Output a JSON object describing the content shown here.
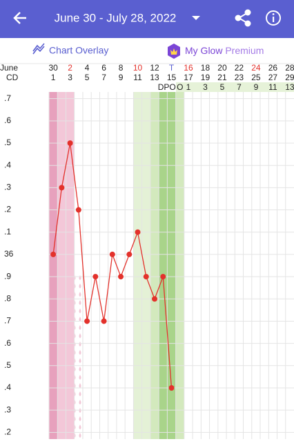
{
  "header": {
    "title": "June 30 - July 28, 2022"
  },
  "toolbar": {
    "overlay": "Chart Overlay",
    "premium_a": "My Glow",
    "premium_b": "Premium"
  },
  "chart_data": {
    "type": "line",
    "month": "June",
    "cd_label": "CD",
    "dates": [
      "30",
      "2",
      "4",
      "6",
      "8",
      "10",
      "12",
      "T",
      "16",
      "18",
      "20",
      "22",
      "24",
      "26",
      "28"
    ],
    "cycle_days": [
      1,
      3,
      5,
      7,
      9,
      11,
      13,
      15,
      17,
      19,
      21,
      23,
      25,
      27,
      29
    ],
    "dpo_label": "DPO",
    "dpo": [
      "O",
      "1",
      "3",
      "5",
      "7",
      "9",
      "11",
      "13"
    ],
    "x": [
      1,
      2,
      3,
      4,
      5,
      6,
      7,
      8,
      9,
      10,
      11,
      12,
      13,
      14,
      15
    ],
    "values": [
      36.0,
      36.3,
      36.5,
      36.2,
      35.7,
      35.9,
      35.7,
      36.0,
      35.9,
      36.0,
      36.1,
      35.9,
      35.8,
      35.9,
      35.4
    ],
    "color": "#e3312b",
    "xlim": [
      0.5,
      29.5
    ],
    "ylim": [
      35.17,
      36.73
    ],
    "yticks": [
      {
        "value": 36.7,
        "label": ".7"
      },
      {
        "value": 36.6,
        "label": ".6"
      },
      {
        "value": 36.5,
        "label": ".5"
      },
      {
        "value": 36.4,
        "label": ".4"
      },
      {
        "value": 36.3,
        "label": ".3"
      },
      {
        "value": 36.2,
        "label": ".2"
      },
      {
        "value": 36.1,
        "label": ".1"
      },
      36,
      {
        "value": 35.9,
        "label": ".9"
      },
      {
        "value": 35.8,
        "label": ".8"
      },
      {
        "value": 35.7,
        "label": ".7"
      },
      {
        "value": 35.6,
        "label": ".6"
      },
      {
        "value": 35.5,
        "label": ".5"
      },
      {
        "value": 35.4,
        "label": ".4"
      },
      {
        "value": 35.3,
        "label": ".3"
      },
      {
        "value": 35.2,
        "label": ".2"
      }
    ],
    "grid": true
  }
}
